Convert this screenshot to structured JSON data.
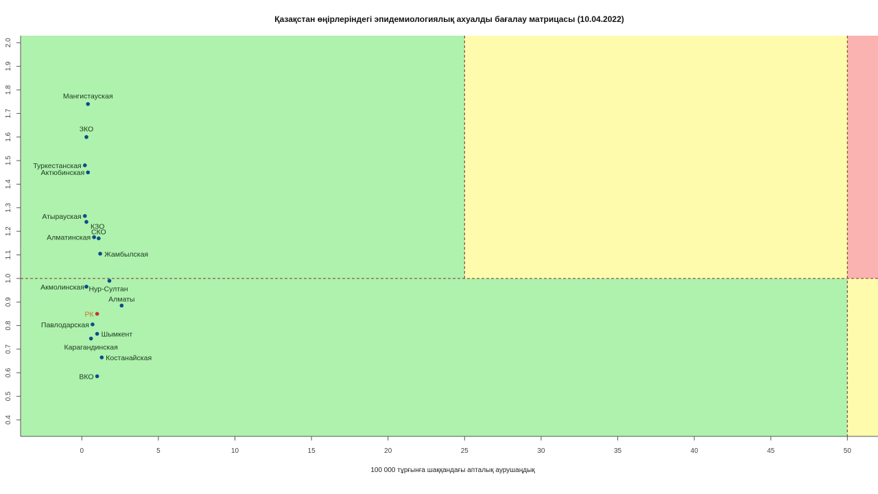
{
  "chart_data": {
    "type": "scatter",
    "title": "Қазақстан өңірлеріндегі эпидемиологиялық ахуалды бағалау матрицасы  (10.04.2022)",
    "xlabel": "100 000 тұрғынға шаққандағы апталық аурушаңдық",
    "ylabel": "",
    "xlim": [
      -4,
      52
    ],
    "ylim": [
      0.33,
      2.03
    ],
    "x_ticks": [
      0,
      5,
      10,
      15,
      20,
      25,
      30,
      35,
      40,
      45,
      50
    ],
    "y_ticks": [
      0.4,
      0.5,
      0.6,
      0.7,
      0.8,
      0.9,
      1.0,
      1.1,
      1.2,
      1.3,
      1.4,
      1.5,
      1.6,
      1.7,
      1.8,
      1.9,
      2.0
    ],
    "grid": false,
    "zones": {
      "colors": {
        "green": "#aef2ad",
        "yellow": "#fefbad",
        "red": "#fbb3b1"
      },
      "x_thresholds": [
        25,
        50
      ],
      "y_threshold": 1.0
    },
    "point_color": "#0d4a8a",
    "highlight_color": "#c0392b",
    "highlight_label_color": "#c9732a",
    "points": [
      {
        "label": "Мангистауская",
        "x": 0.4,
        "y": 1.74
      },
      {
        "label": "ЗКО",
        "x": 0.3,
        "y": 1.6
      },
      {
        "label": "Туркестанская",
        "x": 0.2,
        "y": 1.48
      },
      {
        "label": "Актюбинская",
        "x": 0.4,
        "y": 1.45
      },
      {
        "label": "Атырауская",
        "x": 0.2,
        "y": 1.265
      },
      {
        "label": "КЗО",
        "x": 0.3,
        "y": 1.24
      },
      {
        "label": "СКО",
        "x": 1.1,
        "y": 1.17
      },
      {
        "label": "Алматинская",
        "x": 0.8,
        "y": 1.175
      },
      {
        "label": "Жамбылская",
        "x": 1.2,
        "y": 1.105
      },
      {
        "label": "Нур-Султан",
        "x": 1.8,
        "y": 0.99
      },
      {
        "label": "Акмолинская",
        "x": 0.3,
        "y": 0.965
      },
      {
        "label": "Алматы",
        "x": 2.6,
        "y": 0.885
      },
      {
        "label": "РК",
        "x": 1.0,
        "y": 0.85,
        "highlight": true
      },
      {
        "label": "Павлодарская",
        "x": 0.7,
        "y": 0.805
      },
      {
        "label": "Шымкент",
        "x": 1.0,
        "y": 0.765
      },
      {
        "label": "Карагандинская",
        "x": 0.6,
        "y": 0.745
      },
      {
        "label": "Костанайская",
        "x": 1.3,
        "y": 0.665
      },
      {
        "label": "ВКО",
        "x": 1.0,
        "y": 0.585
      }
    ]
  }
}
